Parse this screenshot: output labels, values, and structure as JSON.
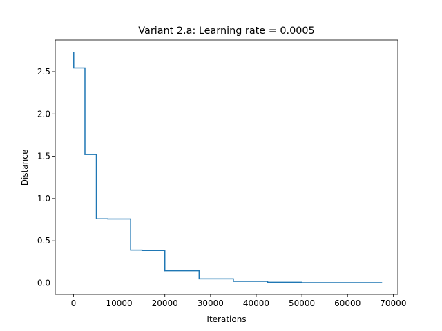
{
  "chart_data": {
    "type": "line",
    "title": "Variant 2.a: Learning rate = 0.0005",
    "xlabel": "Iterations",
    "ylabel": "Distance",
    "xlim": [
      -4000,
      71000
    ],
    "ylim": [
      -0.135,
      2.875
    ],
    "x_ticks": [
      0,
      10000,
      20000,
      30000,
      40000,
      50000,
      60000,
      70000
    ],
    "x_tick_labels": [
      "0",
      "10000",
      "20000",
      "30000",
      "40000",
      "50000",
      "60000",
      "70000"
    ],
    "y_ticks": [
      0.0,
      0.5,
      1.0,
      1.5,
      2.0,
      2.5
    ],
    "y_tick_labels": [
      "0.0",
      "0.5",
      "1.0",
      "1.5",
      "2.0",
      "2.5"
    ],
    "grid": false,
    "legend": "none",
    "series": [
      {
        "color": "#1f77b4",
        "step": "post",
        "x": [
          0,
          50,
          2500,
          5000,
          7500,
          12500,
          15000,
          20000,
          27500,
          35000,
          42500,
          50000,
          67500
        ],
        "y": [
          2.73,
          2.545,
          1.52,
          0.76,
          0.758,
          0.39,
          0.385,
          0.145,
          0.05,
          0.02,
          0.009,
          0.004,
          0.004
        ]
      }
    ]
  }
}
